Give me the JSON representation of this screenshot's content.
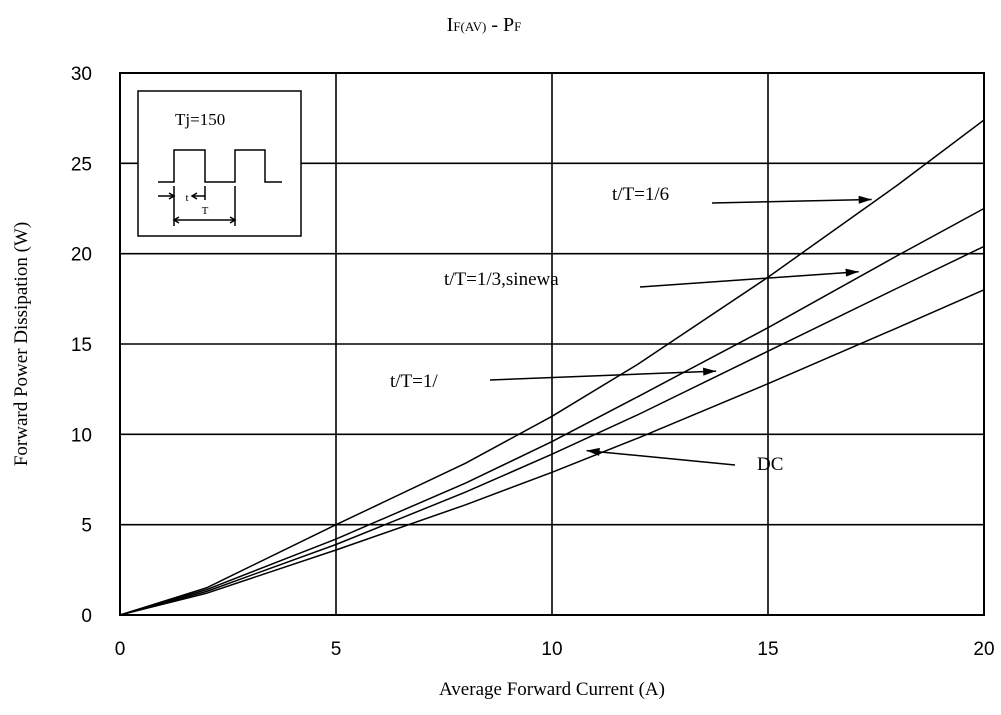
{
  "chart_data": {
    "type": "line",
    "title_main": "I",
    "title_sub1": "F(AV)",
    "title_sep": " - P",
    "title_sub2": "F",
    "xlabel": "Average Forward Current (A)",
    "ylabel": "Forward Power Dissipation (W)",
    "xlim": [
      0,
      20
    ],
    "ylim": [
      0,
      30
    ],
    "xticks": [
      0,
      5,
      10,
      15,
      20
    ],
    "yticks": [
      0,
      5,
      10,
      15,
      20,
      25,
      30
    ],
    "grid": true,
    "series": [
      {
        "name": "t/T=1/6",
        "x": [
          0,
          2,
          5,
          8,
          10,
          12,
          15,
          18,
          20
        ],
        "y": [
          0,
          1.5,
          5.0,
          8.4,
          11.0,
          13.9,
          18.7,
          23.8,
          27.4
        ]
      },
      {
        "name": "t/T=1/3,sinewa",
        "x": [
          0,
          2,
          5,
          8,
          10,
          12,
          15,
          18,
          20
        ],
        "y": [
          0,
          1.4,
          4.2,
          7.3,
          9.6,
          12.1,
          15.9,
          19.9,
          22.5
        ]
      },
      {
        "name": "t/T=1/",
        "x": [
          0,
          2,
          5,
          8,
          10,
          12,
          15,
          18,
          20
        ],
        "y": [
          0,
          1.3,
          3.9,
          6.8,
          8.9,
          11.1,
          14.6,
          18.1,
          20.4
        ]
      },
      {
        "name": "DC",
        "x": [
          0,
          2,
          5,
          8,
          10,
          12,
          15,
          18,
          20
        ],
        "y": [
          0,
          1.2,
          3.6,
          6.1,
          7.9,
          9.8,
          12.8,
          15.9,
          18.0
        ]
      }
    ],
    "annotations": [
      {
        "text": "t/T=1/6",
        "target_x": 17.4,
        "target_y": 23.0
      },
      {
        "text": "t/T=1/3,sinewa",
        "target_x": 17.1,
        "target_y": 19.0
      },
      {
        "text": "t/T=1/",
        "target_x": 13.8,
        "target_y": 13.5
      },
      {
        "text": "DC",
        "target_x": 10.8,
        "target_y": 9.1
      }
    ],
    "inset": {
      "label": "Tj=150",
      "t_label": "t",
      "T_label": "T"
    }
  }
}
